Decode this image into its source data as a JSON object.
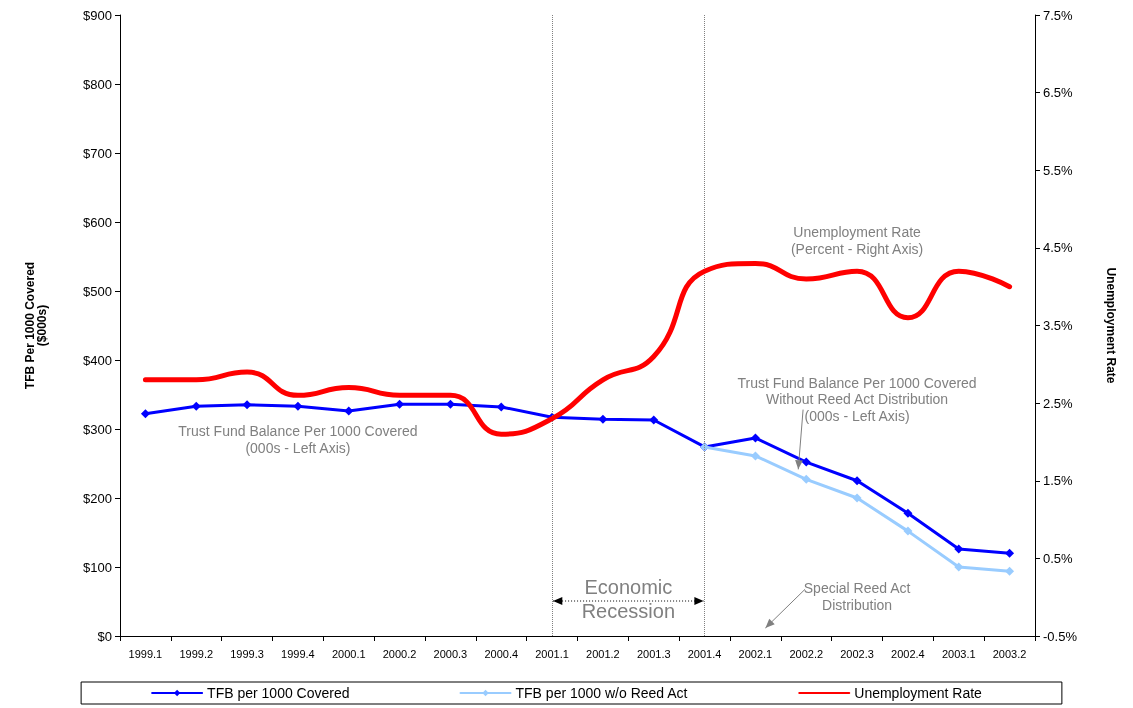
{
  "chart_data": {
    "type": "line",
    "ylabel": "TFB Per 1000 Covered\n($000s)",
    "y2label": "Unemployment Rate",
    "categories": [
      "1999.1",
      "1999.2",
      "1999.3",
      "1999.4",
      "2000.1",
      "2000.2",
      "2000.3",
      "2000.4",
      "2001.1",
      "2001.2",
      "2001.3",
      "2001.4",
      "2002.1",
      "2002.2",
      "2002.3",
      "2002.4",
      "2003.1",
      "2003.2"
    ],
    "series": [
      {
        "name": "TFB per 1000 Covered",
        "color": "#0000ff",
        "marker": "diamond",
        "values": [
          322,
          333,
          335,
          333,
          326,
          336,
          336,
          332,
          317,
          314,
          313,
          274,
          287,
          252,
          225,
          178,
          126,
          120
        ]
      },
      {
        "name": "TFB per 1000 w/o Reed Act",
        "color": "#99ccff",
        "marker": "diamond",
        "values": [
          null,
          null,
          null,
          null,
          null,
          null,
          null,
          null,
          null,
          null,
          null,
          274,
          261,
          227,
          200,
          152,
          100,
          94
        ]
      },
      {
        "name": "Unemployment Rate",
        "color": "#ff0000",
        "marker": "none",
        "axis": "y2",
        "values": [
          2.8,
          2.8,
          2.9,
          2.6,
          2.7,
          2.6,
          2.6,
          2.1,
          2.3,
          2.8,
          3.1,
          4.2,
          4.3,
          4.1,
          4.2,
          3.6,
          4.2,
          4.0
        ]
      }
    ],
    "ylim": [
      0,
      900
    ],
    "yticks": [
      {
        "value": 0,
        "label": "$0"
      },
      {
        "value": 100,
        "label": "$100"
      },
      {
        "value": 200,
        "label": "$200"
      },
      {
        "value": 300,
        "label": "$300"
      },
      {
        "value": 400,
        "label": "$400"
      },
      {
        "value": 500,
        "label": "$500"
      },
      {
        "value": 600,
        "label": "$600"
      },
      {
        "value": 700,
        "label": "$700"
      },
      {
        "value": 800,
        "label": "$800"
      },
      {
        "value": 900,
        "label": "$900"
      }
    ],
    "y2lim": [
      -0.5,
      7.5
    ],
    "y2ticks": [
      {
        "value": -0.5,
        "label": "-0.5%"
      },
      {
        "value": 0.5,
        "label": "0.5%"
      },
      {
        "value": 1.5,
        "label": "1.5%"
      },
      {
        "value": 2.5,
        "label": "2.5%"
      },
      {
        "value": 3.5,
        "label": "3.5%"
      },
      {
        "value": 4.5,
        "label": "4.5%"
      },
      {
        "value": 5.5,
        "label": "5.5%"
      },
      {
        "value": 6.5,
        "label": "6.5%"
      },
      {
        "value": 7.5,
        "label": "7.5%"
      }
    ],
    "ref_lines": [
      {
        "axis": "x",
        "value": "2001.1",
        "color": "#808080",
        "line_style": "dotted"
      },
      {
        "axis": "x",
        "value": "2001.4",
        "color": "#808080",
        "line_style": "dotted"
      }
    ],
    "annotations": [
      "Trust Fund Balance Per 1000 Covered\n(000s - Left Axis)",
      "Unemployment Rate\n(Percent - Right Axis)",
      "Trust Fund Balance Per 1000 Covered\nWithout Reed Act Distribution\n(000s - Left Axis)",
      "Special Reed Act\nDistribution",
      "Economic\nRecession"
    ],
    "grid": false,
    "legend": "bottom",
    "line_style": "solid"
  }
}
